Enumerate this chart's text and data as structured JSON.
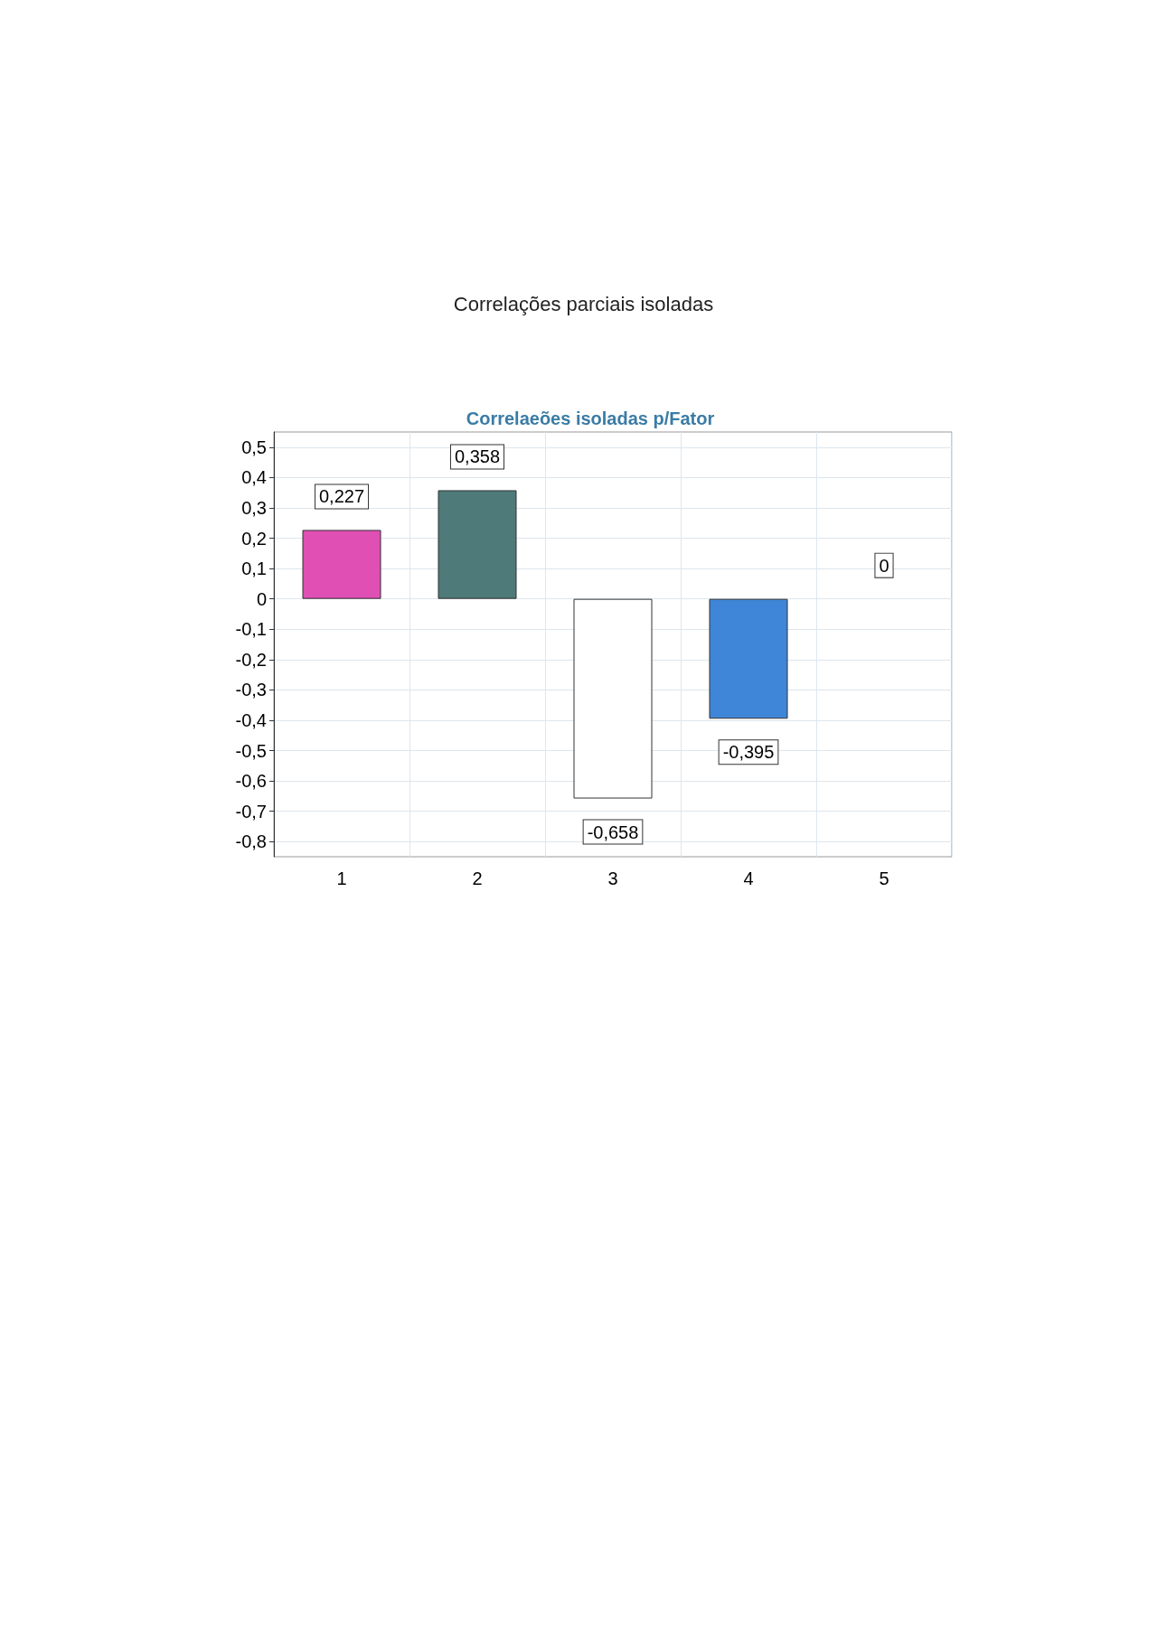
{
  "chart_data": {
    "type": "bar",
    "title": "Correlações parciais isoladas",
    "subtitle": "Correlaeões isoladas p/Fator",
    "categories": [
      "1",
      "2",
      "3",
      "4",
      "5"
    ],
    "values": [
      0.227,
      0.358,
      -0.658,
      -0.395,
      0
    ],
    "colors": [
      "#e04fb4",
      "#4f7a7a",
      "#ffffff",
      "#3f86d8",
      "#ffffff"
    ],
    "value_labels": [
      "0,227",
      "0,358",
      "-0,658",
      "-0,395",
      "0"
    ],
    "ylim": [
      -0.85,
      0.55
    ],
    "yticks": [
      {
        "value": -0.8,
        "label": "-0,8"
      },
      {
        "value": -0.7,
        "label": "-0,7"
      },
      {
        "value": -0.6,
        "label": "-0,6"
      },
      {
        "value": -0.5,
        "label": "-0,5"
      },
      {
        "value": -0.4,
        "label": "-0,4"
      },
      {
        "value": -0.3,
        "label": "-0,3"
      },
      {
        "value": -0.2,
        "label": "-0,2"
      },
      {
        "value": -0.1,
        "label": "-0,1"
      },
      {
        "value": 0,
        "label": "0"
      },
      {
        "value": 0.1,
        "label": "0,1"
      },
      {
        "value": 0.2,
        "label": "0,2"
      },
      {
        "value": 0.3,
        "label": "0,3"
      },
      {
        "value": 0.4,
        "label": "0,4"
      },
      {
        "value": 0.5,
        "label": "0,5"
      }
    ],
    "grid": true
  }
}
